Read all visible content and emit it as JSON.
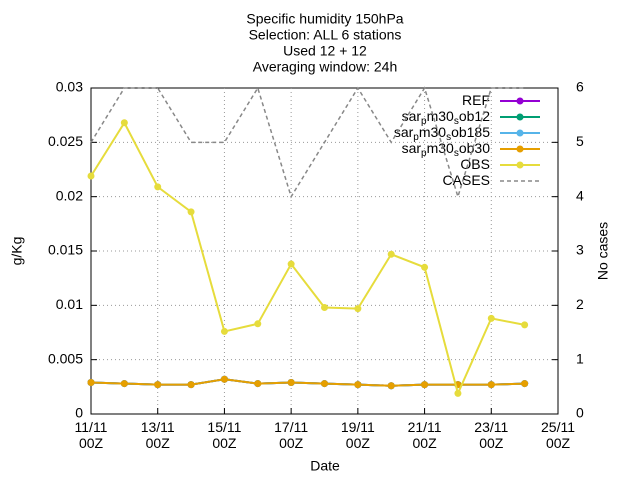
{
  "chart_data": {
    "type": "line",
    "title": [
      "Specific humidity 150hPa",
      "Selection: ALL      6 stations",
      "Used 12 + 12",
      "Averaging window: 24h"
    ],
    "xlabel": "Date",
    "ylabel": "g/Kg",
    "y2label": "No cases",
    "x": [
      11,
      12,
      13,
      14,
      15,
      16,
      17,
      18,
      19,
      20,
      21,
      22,
      23,
      24
    ],
    "xlim": [
      11,
      25
    ],
    "xticks": [
      {
        "value": 11,
        "label": "11/11 00Z"
      },
      {
        "value": 13,
        "label": "13/11 00Z"
      },
      {
        "value": 15,
        "label": "15/11 00Z"
      },
      {
        "value": 17,
        "label": "17/11 00Z"
      },
      {
        "value": 19,
        "label": "19/11 00Z"
      },
      {
        "value": 21,
        "label": "21/11 00Z"
      },
      {
        "value": 23,
        "label": "23/11 00Z"
      },
      {
        "value": 25,
        "label": "25/11 00Z"
      }
    ],
    "ylim": [
      0,
      0.03
    ],
    "yticks": [
      0,
      0.005,
      0.01,
      0.015,
      0.02,
      0.025,
      0.03
    ],
    "y2lim": [
      0,
      6
    ],
    "y2ticks": [
      0,
      1,
      2,
      3,
      4,
      5,
      6
    ],
    "grid": true,
    "legend": "top-right",
    "series": [
      {
        "name": "REF",
        "color": "#9400d3",
        "marker": true,
        "values": [
          0.0029,
          0.0028,
          0.0027,
          0.0027,
          0.0032,
          0.0028,
          0.0029,
          0.0028,
          0.0027,
          0.0026,
          0.0027,
          0.0027,
          0.0027,
          0.0028
        ]
      },
      {
        "name": "sar_pm30_sob12",
        "color": "#009e73",
        "marker": true,
        "values": [
          0.0029,
          0.0028,
          0.0027,
          0.0027,
          0.0032,
          0.0028,
          0.0029,
          0.0028,
          0.0027,
          0.0026,
          0.0027,
          0.0027,
          0.0027,
          0.0028
        ]
      },
      {
        "name": "sar_pm30_sob185",
        "color": "#56b4e9",
        "marker": true,
        "values": [
          0.0029,
          0.0028,
          0.0027,
          0.0027,
          0.0032,
          0.0028,
          0.0029,
          0.0028,
          0.0027,
          0.0026,
          0.0027,
          0.0027,
          0.0027,
          0.0028
        ]
      },
      {
        "name": "sar_pm30_sob30",
        "color": "#e69f00",
        "marker": true,
        "values": [
          0.0029,
          0.0028,
          0.0027,
          0.0027,
          0.0032,
          0.0028,
          0.0029,
          0.0028,
          0.0027,
          0.0026,
          0.0027,
          0.0027,
          0.0027,
          0.0028
        ]
      },
      {
        "name": "OBS",
        "color": "#e6dc3c",
        "marker": true,
        "values": [
          0.0219,
          0.0268,
          0.0209,
          0.0186,
          0.0076,
          0.0083,
          0.0138,
          0.0098,
          0.0097,
          0.0147,
          0.0135,
          0.0019,
          0.0088,
          0.0082
        ]
      },
      {
        "name": "CASES",
        "color": "#888888",
        "marker": false,
        "dashed": true,
        "axis": "y2",
        "values": [
          5,
          6,
          6,
          5,
          5,
          6,
          4,
          5,
          6,
          5,
          6,
          4,
          6,
          6
        ]
      }
    ]
  }
}
